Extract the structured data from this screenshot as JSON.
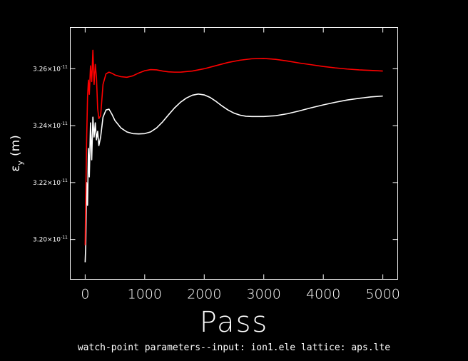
{
  "chart_data": {
    "type": "line",
    "xlabel": "Pass",
    "ylabel": "ε",
    "ylabel_subscript": "y",
    "ylabel_unit": "(m)",
    "caption": "watch-point parameters--input: ion1.ele  lattice: aps.lte",
    "xlim": [
      -250,
      5250
    ],
    "ylim": [
      3.186e-11,
      3.2745e-11
    ],
    "xticks": [
      0,
      1000,
      2000,
      3000,
      4000,
      5000
    ],
    "xtick_labels": [
      "0",
      "1000",
      "2000",
      "3000",
      "4000",
      "5000"
    ],
    "yticks": [
      3.2e-11,
      3.22e-11,
      3.24e-11,
      3.26e-11
    ],
    "ytick_mantissas": [
      "3.20",
      "3.22",
      "3.24",
      "3.26"
    ],
    "ytick_exponent": "-11",
    "grid": false,
    "legend": "none",
    "series": [
      {
        "color": "#ffffff",
        "x": [
          0,
          10,
          25,
          40,
          55,
          70,
          90,
          110,
          130,
          150,
          170,
          190,
          210,
          230,
          260,
          300,
          350,
          400,
          450,
          500,
          600,
          700,
          800,
          900,
          1000,
          1100,
          1200,
          1300,
          1400,
          1500,
          1600,
          1700,
          1800,
          1900,
          2000,
          2100,
          2200,
          2300,
          2400,
          2500,
          2600,
          2700,
          2800,
          2900,
          3000,
          3200,
          3400,
          3600,
          3800,
          4000,
          4200,
          4400,
          4600,
          4800,
          5000
        ],
        "y": [
          3.192e-11,
          3.198e-11,
          3.22e-11,
          3.212e-11,
          3.232e-11,
          3.222e-11,
          3.241e-11,
          3.228e-11,
          3.243e-11,
          3.236e-11,
          3.241e-11,
          3.235e-11,
          3.238e-11,
          3.233e-11,
          3.236e-11,
          3.243e-11,
          3.2455e-11,
          3.2458e-11,
          3.244e-11,
          3.2418e-11,
          3.2392e-11,
          3.2378e-11,
          3.2372e-11,
          3.2371e-11,
          3.2372e-11,
          3.2378e-11,
          3.2392e-11,
          3.2413e-11,
          3.2438e-11,
          3.2462e-11,
          3.2482e-11,
          3.2497e-11,
          3.2507e-11,
          3.2511e-11,
          3.2508e-11,
          3.2499e-11,
          3.2485e-11,
          3.2469e-11,
          3.2455e-11,
          3.2444e-11,
          3.2437e-11,
          3.2433e-11,
          3.2432e-11,
          3.2432e-11,
          3.2432e-11,
          3.2435e-11,
          3.2442e-11,
          3.2452e-11,
          3.2463e-11,
          3.2473e-11,
          3.2482e-11,
          3.249e-11,
          3.2496e-11,
          3.2501e-11,
          3.2504e-11
        ]
      },
      {
        "color": "#ff0000",
        "x": [
          0,
          10,
          25,
          40,
          55,
          70,
          90,
          110,
          130,
          150,
          170,
          190,
          210,
          230,
          260,
          300,
          350,
          400,
          450,
          500,
          600,
          700,
          800,
          900,
          1000,
          1100,
          1200,
          1300,
          1400,
          1500,
          1600,
          1700,
          1800,
          1900,
          2000,
          2200,
          2400,
          2600,
          2800,
          3000,
          3200,
          3400,
          3600,
          3800,
          4000,
          4200,
          4400,
          4600,
          4800,
          5000
        ],
        "y": [
          3.198e-11,
          3.215e-11,
          3.235e-11,
          3.25e-11,
          3.256e-11,
          3.251e-11,
          3.261e-11,
          3.2555e-11,
          3.2665e-11,
          3.2545e-11,
          3.2615e-11,
          3.257e-11,
          3.246e-11,
          3.2425e-11,
          3.2435e-11,
          3.2545e-11,
          3.2582e-11,
          3.2588e-11,
          3.2584e-11,
          3.2578e-11,
          3.2572e-11,
          3.257e-11,
          3.2575e-11,
          3.2585e-11,
          3.2593e-11,
          3.2597e-11,
          3.2596e-11,
          3.2592e-11,
          3.2589e-11,
          3.2588e-11,
          3.2588e-11,
          3.259e-11,
          3.2592e-11,
          3.2596e-11,
          3.26e-11,
          3.2611e-11,
          3.2622e-11,
          3.263e-11,
          3.2635e-11,
          3.2636e-11,
          3.2633e-11,
          3.2627e-11,
          3.262e-11,
          3.2614e-11,
          3.2608e-11,
          3.2603e-11,
          3.2599e-11,
          3.2596e-11,
          3.2594e-11,
          3.2592e-11
        ]
      }
    ]
  }
}
